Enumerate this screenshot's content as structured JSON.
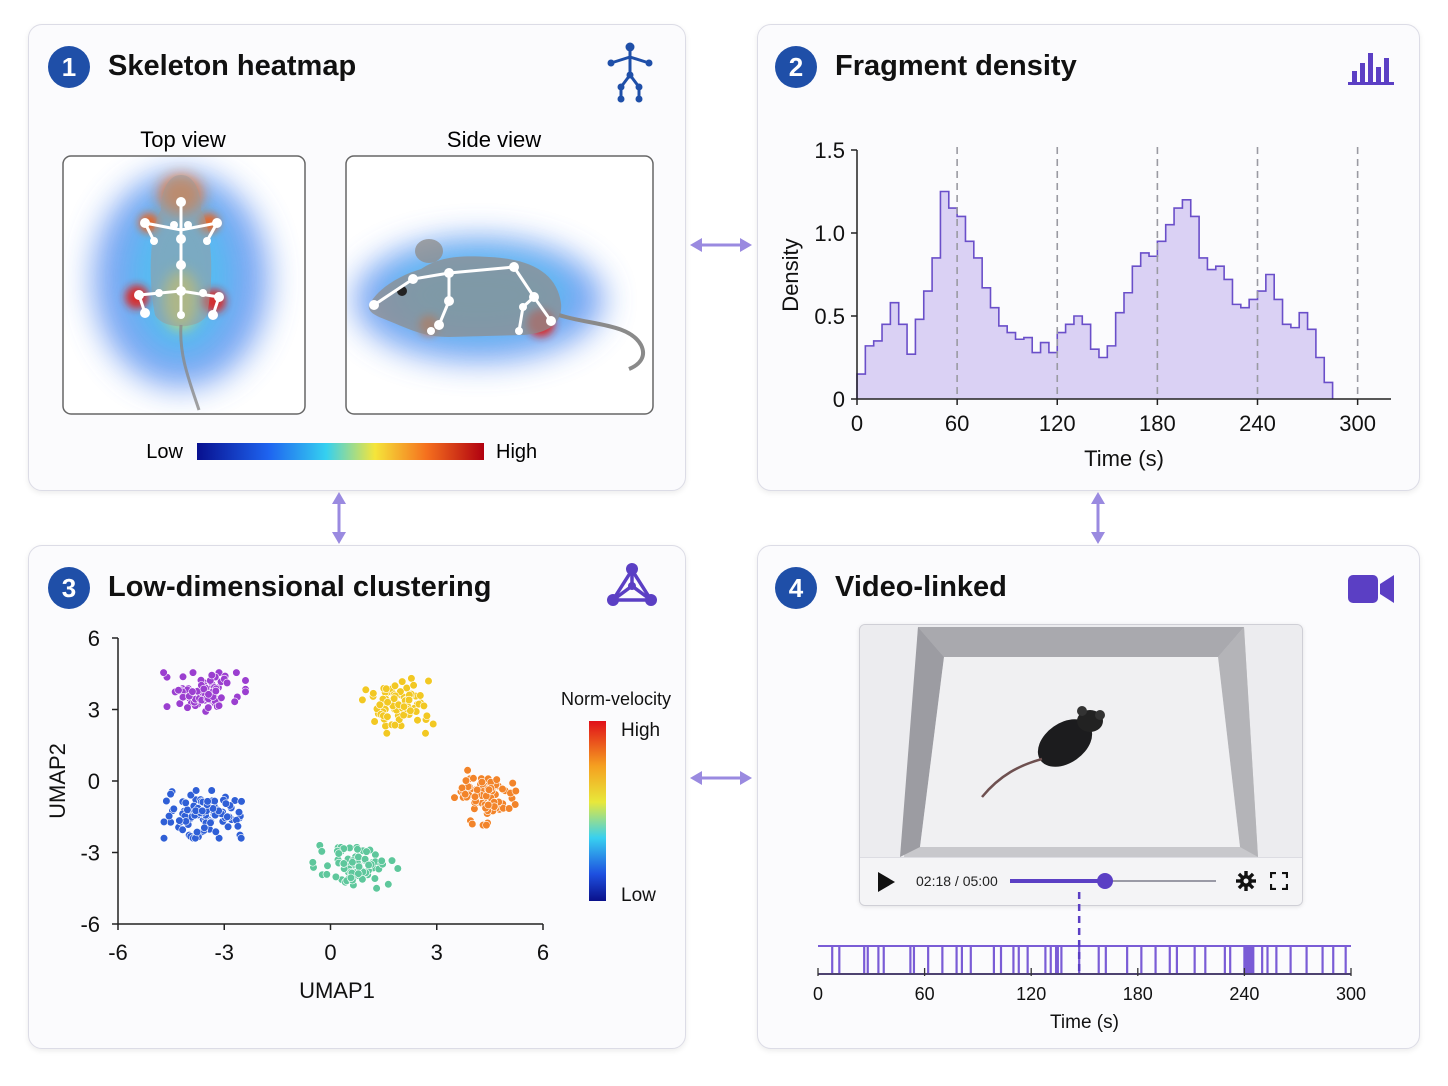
{
  "panels": [
    {
      "number": "1",
      "title": "Skeleton heatmap",
      "icon": "skeleton-icon"
    },
    {
      "number": "2",
      "title": "Fragment density",
      "icon": "bar-chart-icon"
    },
    {
      "number": "3",
      "title": "Low-dimensional clustering",
      "icon": "network-triangle-icon"
    },
    {
      "number": "4",
      "title": "Video-linked",
      "icon": "video-camera-icon"
    }
  ],
  "heatmap": {
    "top_label": "Top view",
    "side_label": "Side view",
    "scale_low": "Low",
    "scale_high": "High",
    "colors": [
      "#08108f",
      "#1e64f0",
      "#35d0f0",
      "#f5e53a",
      "#f5701e",
      "#b00010"
    ]
  },
  "chart_data": [
    {
      "type": "area",
      "chart": "fragment-density",
      "xlabel": "Time (s)",
      "ylabel": "Density",
      "xlim": [
        0,
        320
      ],
      "ylim": [
        0,
        1.5
      ],
      "xticks": [
        0,
        60,
        120,
        180,
        240,
        300
      ],
      "yticks": [
        0,
        0.5,
        1.0,
        1.5
      ],
      "ytick_labels": [
        "0",
        "0.5",
        "1.0",
        "1.5"
      ],
      "dashed_lines": [
        60,
        120,
        180,
        240,
        300
      ],
      "bin_width": 5,
      "values": [
        0.15,
        0.32,
        0.35,
        0.45,
        0.58,
        0.45,
        0.27,
        0.48,
        0.65,
        0.85,
        1.25,
        1.15,
        1.1,
        0.95,
        0.85,
        0.67,
        0.55,
        0.44,
        0.4,
        0.36,
        0.37,
        0.28,
        0.34,
        0.28,
        0.4,
        0.45,
        0.5,
        0.45,
        0.3,
        0.25,
        0.32,
        0.52,
        0.64,
        0.8,
        0.88,
        0.86,
        0.95,
        1.05,
        1.15,
        1.2,
        1.1,
        0.85,
        0.78,
        0.8,
        0.72,
        0.57,
        0.55,
        0.6,
        0.65,
        0.75,
        0.6,
        0.45,
        0.43,
        0.52,
        0.42,
        0.25,
        0.1
      ],
      "fill_color": "#d3c9f2",
      "line_color": "#6a4fc9"
    },
    {
      "type": "scatter",
      "chart": "umap-clustering",
      "xlabel": "UMAP1",
      "ylabel": "UMAP2",
      "xlim": [
        -6,
        6
      ],
      "ylim": [
        -6,
        6
      ],
      "xticks": [
        -6,
        -3,
        0,
        3,
        6
      ],
      "yticks": [
        6,
        3,
        0,
        -3,
        -6
      ],
      "colorbar": {
        "title": "Norm-velocity",
        "high": "High",
        "low": "Low"
      },
      "clusters": [
        {
          "color": "#9b3fd0",
          "center": [
            -3.6,
            3.7
          ],
          "spread": [
            1.2,
            0.85
          ],
          "n": 95
        },
        {
          "color": "#f2c823",
          "center": [
            1.9,
            3.2
          ],
          "spread": [
            1.0,
            1.2
          ],
          "n": 95
        },
        {
          "color": "#2f5fd6",
          "center": [
            -3.5,
            -1.4
          ],
          "spread": [
            1.2,
            1.0
          ],
          "n": 105
        },
        {
          "color": "#5ec79c",
          "center": [
            0.7,
            -3.6
          ],
          "spread": [
            1.2,
            0.9
          ],
          "n": 90
        },
        {
          "color": "#f2842a",
          "center": [
            4.4,
            -0.7
          ],
          "spread": [
            0.9,
            1.15
          ],
          "n": 95
        }
      ]
    },
    {
      "type": "scatter",
      "chart": "event-raster",
      "xlabel": "Time (s)",
      "xlim": [
        0,
        300
      ],
      "xticks": [
        0,
        60,
        120,
        180,
        240,
        300
      ],
      "events": [
        8,
        12,
        26,
        28,
        34,
        37,
        52,
        54,
        62,
        70,
        78,
        81,
        86,
        99,
        103,
        110,
        113,
        118,
        128,
        131,
        134,
        135,
        137,
        147,
        158,
        162,
        174,
        182,
        190,
        198,
        202,
        212,
        218,
        229,
        232,
        240,
        241,
        242,
        243,
        244,
        245,
        250,
        253,
        258,
        266,
        275,
        284,
        290,
        297
      ],
      "current_time": 147
    }
  ],
  "video": {
    "time": "02:18 / 05:00",
    "progress": 0.46
  }
}
